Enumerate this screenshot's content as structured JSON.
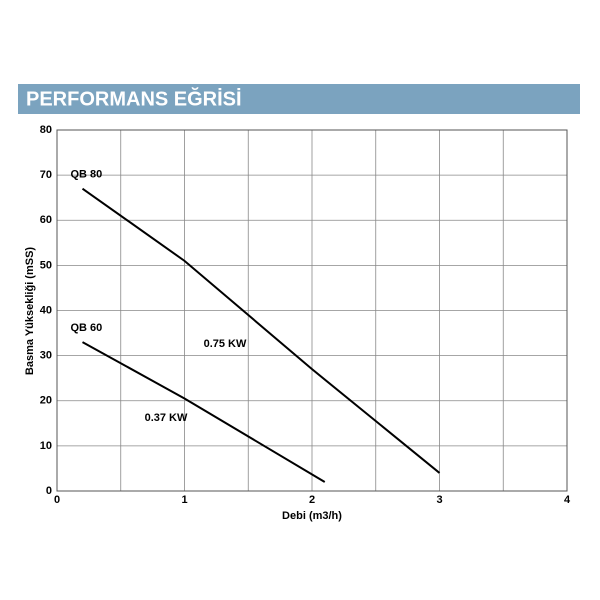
{
  "chart_data": {
    "type": "line",
    "title": "PERFORMANS EĞRİSİ",
    "xlabel": "Debi (m3/h)",
    "ylabel": "Basma Yüksekliği (mSS)",
    "xlim": [
      0,
      4
    ],
    "xticks": [
      0,
      1,
      2,
      3,
      4
    ],
    "xgrid_minor": [
      0.5,
      1.5,
      2.5,
      3.5
    ],
    "ylim": [
      0,
      80
    ],
    "yticks": [
      0,
      10,
      20,
      30,
      40,
      50,
      60,
      70,
      80
    ],
    "grid": true,
    "series": [
      {
        "name": "QB 80",
        "color": "#000000",
        "x": [
          0.2,
          1,
          2,
          3
        ],
        "values": [
          67,
          51,
          27,
          4
        ]
      },
      {
        "name": "QB 60",
        "color": "#000000",
        "x": [
          0.2,
          1,
          2.1
        ],
        "values": [
          33,
          20.5,
          2
        ]
      }
    ],
    "annotations": [
      "0.75 KW",
      "0.37 KW"
    ]
  }
}
